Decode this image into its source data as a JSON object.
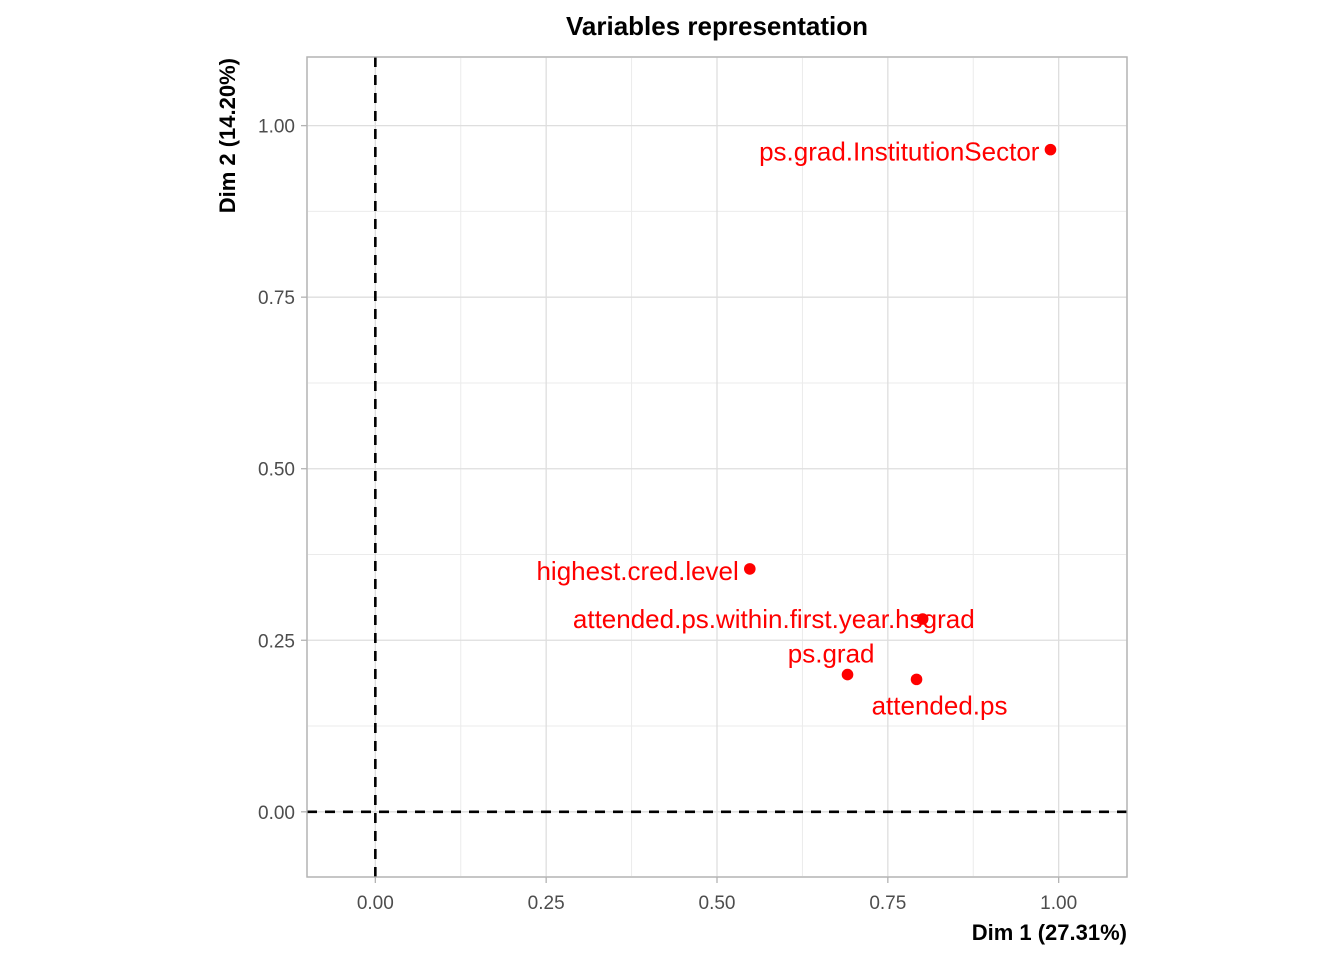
{
  "chart_data": {
    "type": "scatter",
    "title": "Variables representation",
    "xlabel": "Dim 1 (27.31%)",
    "ylabel": "Dim 2 (14.20%)",
    "xlim": [
      -0.1,
      1.1
    ],
    "ylim": [
      -0.095,
      1.1
    ],
    "xticks": [
      0,
      0.25,
      0.5,
      0.75,
      1
    ],
    "yticks": [
      0,
      0.25,
      0.5,
      0.75,
      1
    ],
    "xtick_labels": [
      "0.00",
      "0.25",
      "0.50",
      "0.75",
      "1.00"
    ],
    "ytick_labels": [
      "0.00",
      "0.25",
      "0.50",
      "0.75",
      "1.00"
    ],
    "grid": true,
    "reference_lines": {
      "x": 0,
      "y": 0,
      "style": "dashed"
    },
    "point_color": "#ff0000",
    "points": [
      {
        "label": "ps.grad.InstitutionSector",
        "x": 0.988,
        "y": 0.965,
        "label_anchor": "left"
      },
      {
        "label": "highest.cred.level",
        "x": 0.548,
        "y": 0.354,
        "label_anchor": "left"
      },
      {
        "label": "attended.ps.within.first.year.hsgrad",
        "x": 0.801,
        "y": 0.281,
        "label_anchor": "over"
      },
      {
        "label": "ps.grad",
        "x": 0.691,
        "y": 0.2,
        "label_anchor": "above-left"
      },
      {
        "label": "attended.ps",
        "x": 0.792,
        "y": 0.193,
        "label_anchor": "below"
      }
    ]
  }
}
